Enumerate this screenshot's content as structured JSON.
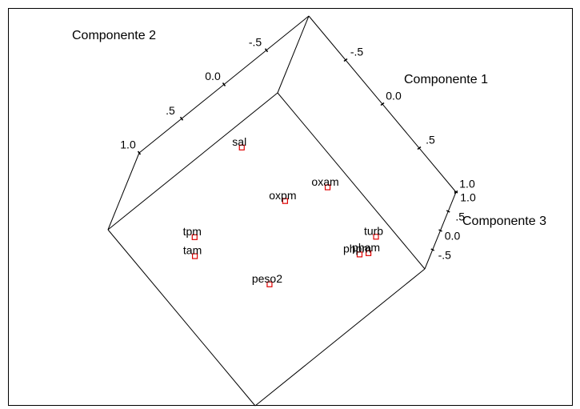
{
  "chart_data": {
    "type": "scatter3d",
    "x_label": "Componente 1",
    "y_label": "Componente 2",
    "z_label": "Componente 3",
    "xlim": [
      -1,
      1
    ],
    "ylim": [
      -1,
      1
    ],
    "zlim": [
      -1,
      1
    ],
    "xticks": [
      {
        "value": -0.5,
        "label": "-.5"
      },
      {
        "value": 0,
        "label": "0.0"
      },
      {
        "value": 0.5,
        "label": ".5"
      },
      {
        "value": 1,
        "label": "1.0"
      }
    ],
    "yticks": [
      {
        "value": -0.5,
        "label": "-.5"
      },
      {
        "value": 0,
        "label": "0.0"
      },
      {
        "value": 0.5,
        "label": ".5"
      },
      {
        "value": 1,
        "label": "1.0"
      }
    ],
    "zticks": [
      {
        "value": -0.5,
        "label": "-.5"
      },
      {
        "value": 0,
        "label": "0.0"
      },
      {
        "value": 0.5,
        "label": ".5"
      },
      {
        "value": 1,
        "label": "1.0"
      }
    ],
    "marker_color": "#e00000",
    "labels": [
      "sal",
      "oxpm",
      "oxam",
      "tpm",
      "tam",
      "peso2",
      "turb",
      "pham",
      "phpm"
    ],
    "x": [
      -0.65,
      -0.05,
      0.09,
      -0.3,
      -0.17,
      0.43,
      0.69,
      0.76,
      0.72
    ],
    "y": [
      -0.09,
      -0.08,
      -0.46,
      0.77,
      0.88,
      0.52,
      -0.51,
      -0.36,
      -0.29
    ],
    "z": [
      0,
      0,
      0,
      0,
      0,
      0,
      0,
      0,
      0
    ]
  }
}
